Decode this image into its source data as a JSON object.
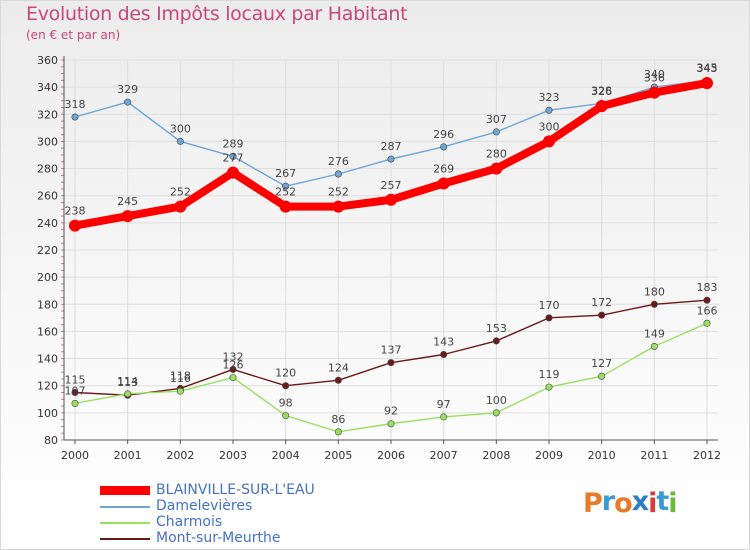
{
  "title": "Evolution des Impôts locaux par Habitant",
  "subtitle": "(en € et par an)",
  "logo_text": "Proxiti",
  "colors": {
    "title": "#c8467a",
    "legend_text": "#4472c4",
    "axis": "#555555",
    "grid": "#dddddd",
    "minor_tick": "#e07070",
    "logo": [
      "#e87b2a",
      "#3a9bd5",
      "#e87b2a",
      "#2b7fc4",
      "#d93a3a",
      "#3a9bd5",
      "#6bb83a"
    ]
  },
  "chart_data": {
    "type": "line",
    "title": "Evolution des Impôts locaux par Habitant",
    "subtitle": "(en € et par an)",
    "xlabel": "",
    "ylabel": "",
    "x": [
      "2000",
      "2001",
      "2002",
      "2003",
      "2004",
      "2005",
      "2006",
      "2007",
      "2008",
      "2009",
      "2010",
      "2011",
      "2012"
    ],
    "ylim": [
      80,
      360
    ],
    "yticks": [
      80,
      100,
      120,
      140,
      160,
      180,
      200,
      220,
      240,
      260,
      280,
      300,
      320,
      340,
      360
    ],
    "grid": true,
    "legend_position": "bottom-left",
    "series": [
      {
        "name": "BLAINVILLE-SUR-L'EAU",
        "color": "#ff0000",
        "values": [
          238,
          245,
          252,
          277,
          252,
          252,
          257,
          269,
          280,
          300,
          326,
          336,
          343
        ],
        "labels": [
          "238",
          "245",
          "252",
          "277",
          "252",
          "252",
          "257",
          "269",
          "280",
          "300",
          "326",
          "336",
          "343"
        ]
      },
      {
        "name": "Damelevières",
        "color": "#6ea6d8",
        "values": [
          318,
          329,
          300,
          289,
          267,
          276,
          287,
          296,
          307,
          323,
          328,
          340,
          345
        ],
        "labels": [
          "318",
          "329",
          "300",
          "289",
          "267",
          "276",
          "287",
          "296",
          "307",
          "323",
          "328",
          "340",
          "345"
        ]
      },
      {
        "name": "Charmois",
        "color": "#98e060",
        "values": [
          107,
          114,
          116,
          126,
          98,
          86,
          92,
          97,
          100,
          119,
          127,
          149,
          166
        ],
        "labels": [
          "107",
          "114",
          "116",
          "126",
          "98",
          "86",
          "92",
          "97",
          "100",
          "119",
          "127",
          "149",
          "166"
        ]
      },
      {
        "name": "Mont-sur-Meurthe",
        "color": "#6b1a1a",
        "values": [
          115,
          113,
          118,
          132,
          120,
          124,
          137,
          143,
          153,
          170,
          172,
          180,
          183
        ],
        "labels": [
          "115",
          "113",
          "118",
          "132",
          "120",
          "124",
          "137",
          "143",
          "153",
          "170",
          "172",
          "180",
          "183"
        ]
      }
    ]
  }
}
